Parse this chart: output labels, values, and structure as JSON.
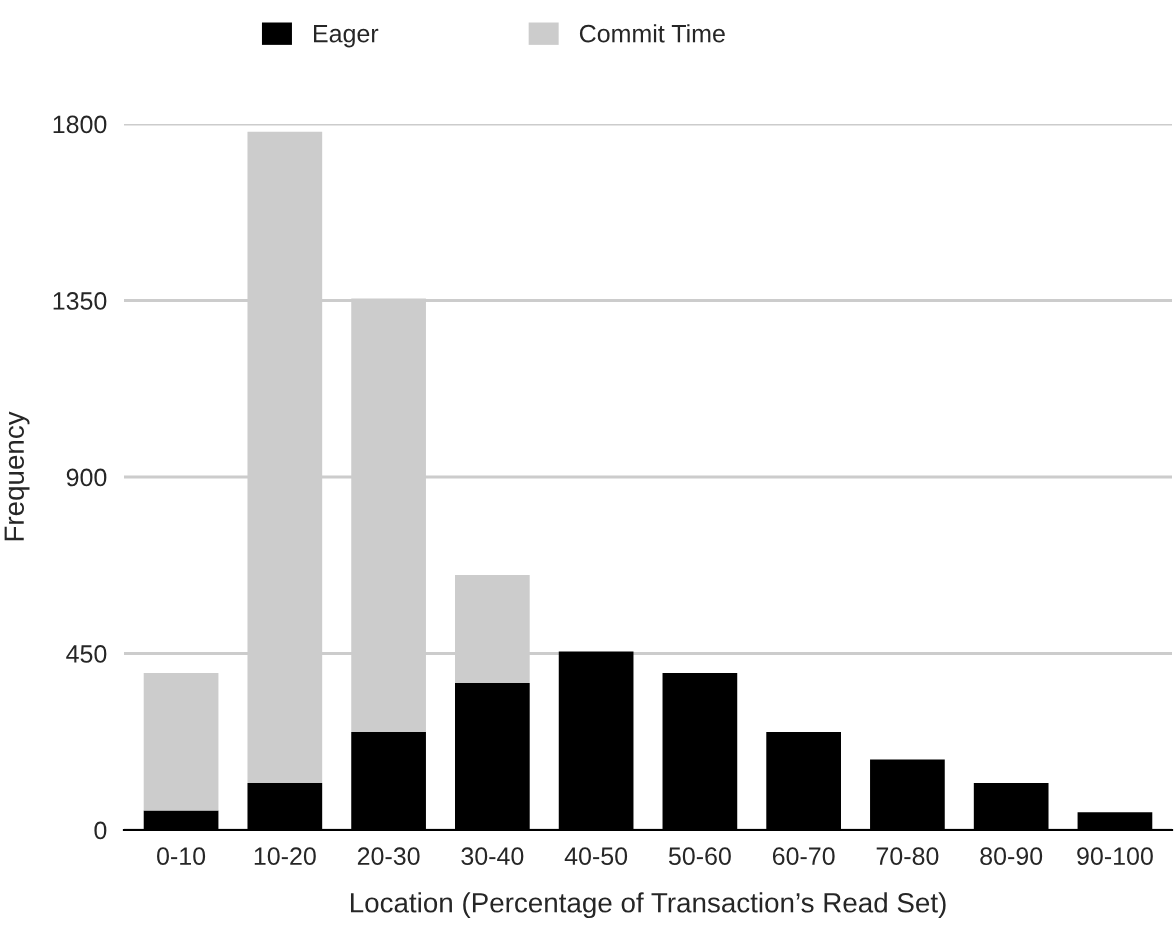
{
  "chart_data": {
    "type": "bar",
    "stacked": true,
    "xlabel": "Location (Percentage of Transaction’s Read Set)",
    "ylabel": "Frequency",
    "categories": [
      "0-10",
      "10-20",
      "20-30",
      "30-40",
      "40-50",
      "50-60",
      "60-70",
      "70-80",
      "80-90",
      "90-100"
    ],
    "series": [
      {
        "name": "Eager",
        "color": "#000000",
        "values": [
          50,
          120,
          250,
          375,
          455,
          400,
          250,
          180,
          120,
          45
        ]
      },
      {
        "name": "Commit Time",
        "color": "#cccccc",
        "values": [
          350,
          1660,
          1105,
          275,
          null,
          null,
          null,
          null,
          null,
          null
        ]
      }
    ],
    "ylim": [
      0,
      1800
    ],
    "yticks": [
      0,
      450,
      900,
      1350,
      1800
    ],
    "grid": "y",
    "legend": "top"
  }
}
